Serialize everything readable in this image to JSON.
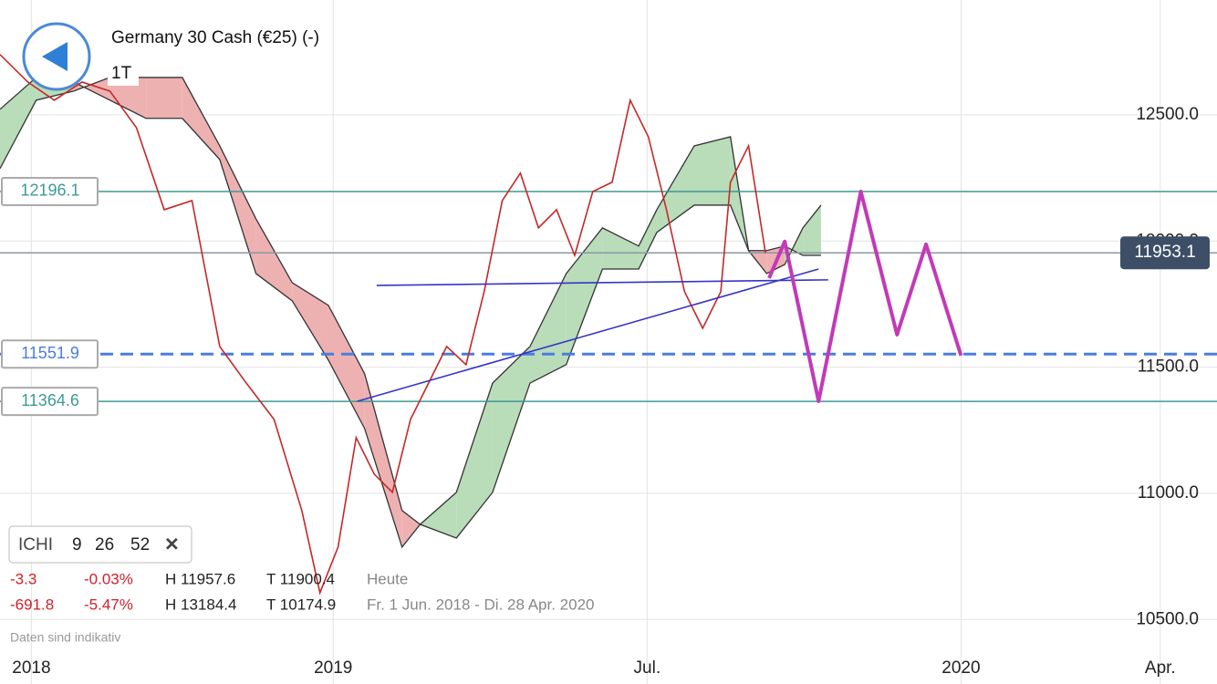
{
  "chart_data": {
    "type": "line",
    "title": "Germany 30 Cash (€25) (-)",
    "timeframe": "1T",
    "xlim": [
      24.4,
      125.2
    ],
    "ylim": [
      10371,
      12955
    ],
    "xticks": [
      {
        "value": 27,
        "label": "2018"
      },
      {
        "value": 52,
        "label": "2019"
      },
      {
        "value": 78,
        "label": "Jul."
      },
      {
        "value": 104,
        "label": "2020"
      },
      {
        "value": 120.5,
        "label": "Apr."
      }
    ],
    "yticks": [
      {
        "value": 10500,
        "label": "10500.0"
      },
      {
        "value": 11000,
        "label": "11000.0"
      },
      {
        "value": 11500,
        "label": "11500.0"
      },
      {
        "value": 12000,
        "label": "12000.0"
      },
      {
        "value": 12500,
        "label": "12500.0"
      }
    ],
    "grid": true,
    "price": {
      "color": "#c62828",
      "x": [
        24.4,
        26.7,
        28.9,
        31.2,
        33.5,
        35.7,
        38.0,
        40.3,
        42.6,
        44.8,
        47.1,
        49.4,
        50.9,
        52.4,
        53.9,
        55.4,
        56.9,
        58.4,
        59.9,
        61.4,
        63.0,
        64.5,
        66.0,
        67.5,
        69.0,
        70.5,
        72.0,
        73.5,
        75.1,
        76.6,
        78.1,
        79.6,
        81.1,
        82.6,
        84.1,
        84.9,
        86.4,
        87.8
      ],
      "values": [
        12739,
        12630,
        12558,
        12630,
        12594,
        12449,
        12124,
        12160,
        11582,
        11437,
        11293,
        10932,
        10606,
        10787,
        11221,
        11076,
        11004,
        11293,
        11437,
        11582,
        11510,
        11799,
        12160,
        12269,
        12052,
        12124,
        11943,
        12196,
        12233,
        12558,
        12413,
        12124,
        11799,
        11654,
        11799,
        12233,
        12377,
        11953
      ]
    },
    "cloud": {
      "up_color": "#b9dcb9",
      "down_color": "#eeb1b1",
      "edge_color": "#333333",
      "x": [
        24.4,
        27.4,
        30.5,
        33.5,
        36.5,
        39.5,
        42.6,
        45.6,
        48.6,
        51.6,
        54.6,
        57.7,
        59.2,
        62.2,
        65.2,
        68.3,
        71.3,
        74.3,
        77.3,
        78.8,
        81.9,
        84.9,
        86.4,
        87.9,
        89.4,
        90.9,
        92.4
      ],
      "span_a": [
        12522,
        12648,
        12630,
        12558,
        12486,
        12486,
        12323,
        11871,
        11763,
        11528,
        11257,
        10787,
        10877,
        11004,
        11437,
        11582,
        11871,
        12052,
        11980,
        12124,
        12377,
        12413,
        11962,
        11871,
        11907,
        12052,
        12142
      ],
      "span_b": [
        12287,
        12558,
        12594,
        12648,
        12648,
        12648,
        12377,
        12088,
        11835,
        11745,
        11474,
        10932,
        10877,
        10823,
        11004,
        11437,
        11510,
        11889,
        11889,
        12034,
        12142,
        12142,
        11962,
        11962,
        11980,
        11943,
        11943
      ]
    },
    "trend_lines": [
      {
        "color": "#3535c8",
        "x": [
          55.6,
          93.0
        ],
        "values": [
          11824,
          11846
        ]
      },
      {
        "color": "#3535c8",
        "x": [
          54.0,
          92.2
        ],
        "values": [
          11365,
          11889
        ]
      }
    ],
    "projection": {
      "color": "#c23ab8",
      "x": [
        88.1,
        89.4,
        92.2,
        95.7,
        98.7,
        101.1,
        104
      ],
      "values": [
        11853,
        11998,
        11365,
        12196,
        11629,
        11987,
        11546
      ]
    },
    "levels": [
      {
        "value": 12196.1,
        "color": "#3d9a94",
        "style": "solid"
      },
      {
        "value": 11551.9,
        "color": "#4a7de0",
        "style": "dashed"
      },
      {
        "value": 11364.6,
        "color": "#3d9a94",
        "style": "solid"
      }
    ],
    "current_price": {
      "value": 11953.1,
      "color": "#8a98a6",
      "badge_color": "#3d4f66"
    },
    "indicator": {
      "name": "ICHI",
      "params": [
        9,
        26,
        52
      ]
    },
    "stats": [
      {
        "change": "-3.3",
        "percent": "-0.03%",
        "high": "H 11957.6",
        "low": "T 11900.4",
        "period": "Heute"
      },
      {
        "change": "-691.8",
        "percent": "-5.47%",
        "high": "H 13184.4",
        "low": "T 10174.9",
        "period": "Fr. 1 Jun. 2018 - Di. 28 Apr. 2020"
      }
    ],
    "note": "Daten sind indikativ"
  }
}
